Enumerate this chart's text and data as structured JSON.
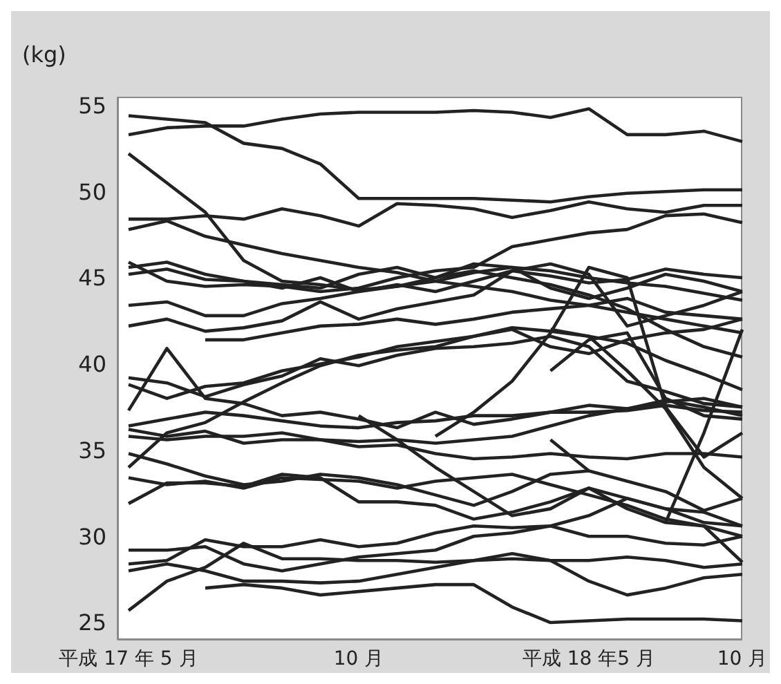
{
  "chart_data": {
    "type": "line",
    "ylabel": "(kg)",
    "categories": [
      "平成 17 年 5 月",
      null,
      null,
      null,
      null,
      null,
      "10 月",
      null,
      null,
      null,
      null,
      null,
      "平成 18 年5 月",
      null,
      null,
      null,
      "10 月"
    ],
    "ylim": [
      24,
      55.5
    ],
    "yticks": [
      25,
      30,
      35,
      40,
      45,
      50,
      55
    ],
    "series": [
      {
        "color": "#222222",
        "values": [
          54.4,
          54.2,
          54.0,
          52.8,
          52.5,
          51.6,
          49.6,
          49.6,
          49.6,
          49.6,
          49.5,
          49.4,
          49.7,
          49.9,
          50.0,
          50.1,
          50.1
        ]
      },
      {
        "color": "#222222",
        "values": [
          53.3,
          53.7,
          53.8,
          53.8,
          54.2,
          54.5,
          54.6,
          54.6,
          54.6,
          54.7,
          54.6,
          54.3,
          54.8,
          53.3,
          53.3,
          53.5,
          52.9
        ]
      },
      {
        "color": "#222222",
        "values": [
          52.2,
          50.5,
          48.8,
          46.0,
          44.8,
          44.6,
          44.3,
          44.5,
          44.8,
          45.3,
          45.6,
          45.4,
          45.0,
          44.7,
          44.5,
          44.1,
          43.7
        ]
      },
      {
        "color": "#222222",
        "values": [
          48.4,
          48.4,
          48.6,
          48.4,
          49.0,
          48.6,
          48.0,
          49.3,
          49.2,
          49.0,
          48.5,
          48.9,
          49.4,
          49.0,
          48.8,
          49.2,
          49.2
        ]
      },
      {
        "color": "#222222",
        "values": [
          47.8,
          48.3,
          47.4,
          46.9,
          46.4,
          46.0,
          45.6,
          45.3,
          44.8,
          44.5,
          44.2,
          43.7,
          43.4,
          43.0,
          42.6,
          42.2,
          41.8
        ]
      },
      {
        "color": "#222222",
        "values": [
          45.9,
          44.8,
          44.5,
          44.6,
          44.5,
          44.2,
          44.4,
          45.0,
          45.4,
          45.6,
          46.8,
          47.2,
          47.6,
          47.8,
          48.6,
          48.7,
          48.2
        ]
      },
      {
        "color": "#222222",
        "values": [
          45.6,
          45.9,
          45.2,
          44.8,
          44.6,
          44.4,
          45.2,
          45.6,
          45.0,
          45.8,
          45.6,
          44.4,
          43.8,
          44.4,
          45.2,
          44.8,
          44.2
        ]
      },
      {
        "color": "#222222",
        "values": [
          45.2,
          45.5,
          44.9,
          44.8,
          44.4,
          45.0,
          44.2,
          44.5,
          45.0,
          45.4,
          45.0,
          44.6,
          44.0,
          43.2,
          42.0,
          41.0,
          40.4
        ]
      },
      {
        "color": "#222222",
        "values": [
          43.4,
          43.6,
          42.8,
          42.8,
          43.5,
          43.8,
          44.2,
          44.6,
          44.2,
          44.8,
          45.4,
          45.1,
          44.7,
          44.9,
          45.5,
          45.2,
          45.0
        ]
      },
      {
        "color": "#222222",
        "values": [
          42.2,
          42.6,
          41.9,
          42.1,
          42.5,
          43.6,
          42.6,
          43.2,
          43.6,
          44.0,
          45.4,
          45.8,
          45.2,
          42.2,
          42.8,
          43.4,
          44.2
        ]
      },
      {
        "color": "#222222",
        "values": [
          null,
          null,
          41.4,
          41.4,
          41.8,
          42.2,
          42.3,
          42.6,
          42.3,
          42.6,
          43.0,
          43.2,
          43.4,
          43.8,
          43.0,
          42.8,
          42.6
        ]
      },
      {
        "color": "#222222",
        "values": [
          37.3,
          40.9,
          38.0,
          37.7,
          37.0,
          37.2,
          36.8,
          36.3,
          37.2,
          36.5,
          36.8,
          37.2,
          37.6,
          37.4,
          37.9,
          37.5,
          37.0
        ]
      },
      {
        "color": "#222222",
        "values": [
          39.2,
          38.9,
          38.1,
          38.8,
          39.3,
          40.3,
          39.9,
          40.5,
          40.9,
          41.0,
          41.2,
          41.6,
          41.0,
          39.0,
          38.4,
          37.7,
          37.5
        ]
      },
      {
        "color": "#222222",
        "values": [
          38.8,
          38.0,
          38.7,
          38.9,
          39.6,
          40.0,
          40.4,
          41.0,
          41.3,
          41.6,
          42.1,
          41.9,
          41.6,
          41.2,
          40.2,
          39.4,
          38.5
        ]
      },
      {
        "color": "#222222",
        "values": [
          34.0,
          36.0,
          36.6,
          37.8,
          38.9,
          39.9,
          40.5,
          40.8,
          41.0,
          41.6,
          42.0,
          41.0,
          40.6,
          41.4,
          41.8,
          42.0,
          42.6
        ]
      },
      {
        "color": "#222222",
        "values": [
          36.4,
          36.8,
          37.2,
          37.0,
          36.7,
          36.4,
          36.3,
          36.6,
          36.7,
          37.0,
          37.0,
          37.2,
          37.2,
          37.3,
          37.6,
          37.3,
          37.2
        ]
      },
      {
        "color": "#222222",
        "values": [
          36.2,
          35.8,
          36.1,
          35.4,
          35.6,
          35.6,
          35.5,
          35.6,
          35.4,
          35.6,
          35.8,
          36.4,
          37.0,
          37.4,
          37.8,
          38.0,
          37.5
        ]
      },
      {
        "color": "#222222",
        "values": [
          35.8,
          35.6,
          35.8,
          35.8,
          36.0,
          35.6,
          35.2,
          35.3,
          34.8,
          34.5,
          34.6,
          34.8,
          34.6,
          34.5,
          34.8,
          34.8,
          34.6
        ]
      },
      {
        "color": "#222222",
        "values": [
          null,
          null,
          null,
          null,
          null,
          null,
          37.0,
          35.6,
          34.0,
          32.6,
          31.2,
          31.6,
          32.8,
          32.2,
          31.6,
          30.8,
          30.6
        ]
      },
      {
        "color": "#222222",
        "values": [
          34.8,
          34.2,
          33.5,
          33.0,
          33.2,
          33.6,
          33.4,
          33.0,
          32.4,
          31.8,
          32.6,
          33.6,
          33.8,
          33.2,
          32.6,
          31.5,
          32.2
        ]
      },
      {
        "color": "#222222",
        "values": [
          33.4,
          33.0,
          33.2,
          32.8,
          33.4,
          33.3,
          33.2,
          32.8,
          33.2,
          33.4,
          33.6,
          33.0,
          32.4,
          31.8,
          31.0,
          30.6,
          30.0
        ]
      },
      {
        "color": "#222222",
        "values": [
          31.9,
          33.1,
          33.1,
          32.9,
          33.6,
          33.4,
          32.0,
          32.0,
          31.8,
          31.0,
          31.4,
          32.0,
          32.8,
          31.6,
          30.8,
          30.6,
          28.5
        ]
      },
      {
        "color": "#222222",
        "values": [
          29.2,
          29.2,
          29.4,
          28.4,
          28.0,
          28.4,
          28.8,
          29.0,
          29.2,
          30.0,
          30.2,
          30.6,
          30.0,
          30.0,
          29.6,
          29.5,
          30.0
        ]
      },
      {
        "color": "#222222",
        "values": [
          28.4,
          28.6,
          29.8,
          29.4,
          29.4,
          29.8,
          29.4,
          29.6,
          30.2,
          30.6,
          30.5,
          30.6,
          31.2,
          32.2,
          31.6,
          31.4,
          30.6
        ]
      },
      {
        "color": "#222222",
        "values": [
          28.0,
          28.4,
          28.0,
          27.4,
          27.4,
          27.3,
          27.4,
          27.8,
          28.2,
          28.6,
          29.0,
          28.6,
          28.6,
          28.8,
          28.6,
          28.2,
          28.4
        ]
      },
      {
        "color": "#222222",
        "values": [
          25.7,
          27.4,
          28.2,
          29.6,
          28.7,
          28.7,
          28.6,
          28.6,
          28.5,
          28.6,
          28.7,
          28.6,
          27.4,
          26.6,
          27.0,
          27.6,
          27.8
        ]
      },
      {
        "color": "#222222",
        "values": [
          null,
          null,
          27.0,
          27.2,
          27.0,
          26.6,
          26.8,
          27.0,
          27.2,
          27.2,
          25.9,
          25.0,
          25.1,
          25.2,
          25.2,
          25.2,
          25.1
        ]
      },
      {
        "color": "#222222",
        "values": [
          null,
          null,
          null,
          null,
          null,
          null,
          null,
          null,
          null,
          null,
          null,
          42.0,
          41.6,
          39.6,
          37.4,
          34.0,
          32.2
        ]
      },
      {
        "color": "#222222",
        "values": [
          null,
          null,
          null,
          null,
          null,
          null,
          null,
          null,
          null,
          null,
          null,
          39.6,
          41.4,
          41.8,
          38.0,
          37.0,
          36.8
        ]
      },
      {
        "color": "#222222",
        "values": [
          null,
          null,
          null,
          null,
          null,
          null,
          null,
          null,
          35.8,
          37.2,
          39.0,
          41.8,
          45.6,
          45.0,
          37.5,
          34.6,
          36.0
        ]
      },
      {
        "color": "#222222",
        "values": [
          null,
          null,
          null,
          null,
          null,
          null,
          null,
          null,
          null,
          null,
          null,
          35.6,
          33.8,
          null,
          null,
          null,
          null
        ]
      },
      {
        "color": "#222222",
        "values": [
          null,
          null,
          null,
          null,
          null,
          null,
          null,
          null,
          null,
          null,
          null,
          null,
          null,
          null,
          30.8,
          36.0,
          42.0
        ]
      }
    ]
  }
}
